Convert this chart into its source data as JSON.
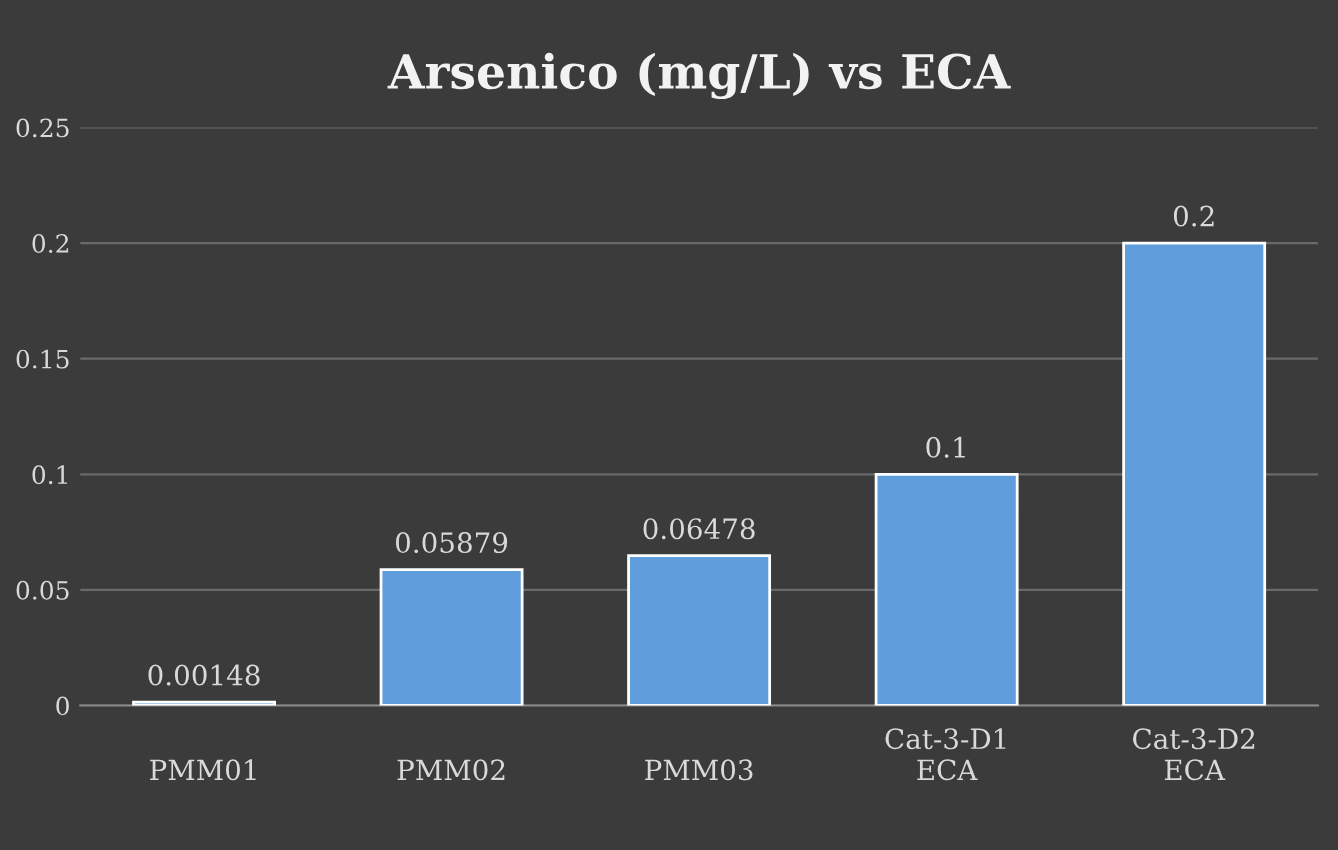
{
  "chart_data": {
    "type": "bar",
    "title": "Arsenico (mg/L) vs ECA",
    "categories": [
      "PMM01",
      "PMM02",
      "PMM03",
      "Cat-3-D1\nECA",
      "Cat-3-D2\nECA"
    ],
    "values": [
      0.00148,
      0.05879,
      0.06478,
      0.1,
      0.2
    ],
    "color": "#5f9ddc",
    "ylim": [
      0,
      0.25
    ],
    "yticks": [
      0,
      0.05,
      0.1,
      0.15,
      0.2,
      0.25
    ],
    "grid": "y",
    "data_labels": true
  }
}
